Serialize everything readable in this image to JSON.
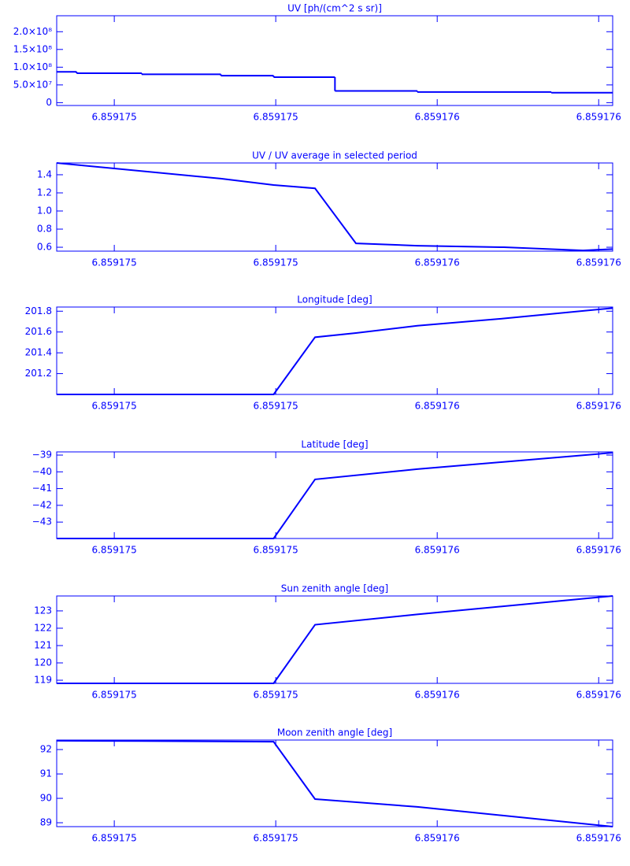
{
  "chart_data": [
    {
      "type": "step",
      "title": "UV [ph/(cm^2 s sr)]",
      "color": "#0000ff",
      "x": [
        6.859174793,
        6.85917483,
        6.859174951,
        6.859175098,
        6.859175196,
        6.85917531,
        6.859175463,
        6.859175712
      ],
      "values": [
        87000000,
        83000000,
        80000000,
        76000000,
        72000000,
        33000000,
        30000000,
        28000000
      ],
      "xlim": [
        6.859174793,
        6.859175826
      ],
      "xticks": [
        {
          "value": 6.8591749,
          "label": "6.859175"
        },
        {
          "value": 6.8591752,
          "label": "6.859175"
        },
        {
          "value": 6.8591755,
          "label": "6.859176"
        },
        {
          "value": 6.8591758,
          "label": "6.859176"
        }
      ],
      "ylim": [
        -8000000,
        245000000
      ],
      "yticks": [
        0,
        {
          "value": 50000000,
          "label": "5.0×10⁷"
        },
        {
          "value": 100000000,
          "label": "1.0×10⁸"
        },
        {
          "value": 150000000,
          "label": "1.5×10⁸"
        },
        {
          "value": 200000000,
          "label": "2.0×10⁸"
        }
      ]
    },
    {
      "type": "line",
      "title": "UV / UV average in selected period",
      "color": "#0000ff",
      "x": [
        6.859174793,
        6.859175098,
        6.859175196,
        6.859175273,
        6.859175349,
        6.859175463,
        6.859175624,
        6.859175771,
        6.859175826
      ],
      "values": [
        1.53,
        1.357,
        1.287,
        1.25,
        0.643,
        0.617,
        0.6,
        0.565,
        0.58
      ],
      "xlim": [
        6.859174793,
        6.859175826
      ],
      "xticks": [
        {
          "value": 6.8591749,
          "label": "6.859175"
        },
        {
          "value": 6.8591752,
          "label": "6.859175"
        },
        {
          "value": 6.8591755,
          "label": "6.859176"
        },
        {
          "value": 6.8591758,
          "label": "6.859176"
        }
      ],
      "ylim": [
        0.557,
        1.53
      ],
      "yticks": [
        {
          "value": 0.6,
          "label": "0.6"
        },
        {
          "value": 0.8,
          "label": "0.8"
        },
        {
          "value": 1,
          "label": "1.0"
        },
        {
          "value": 1.2,
          "label": "1.2"
        },
        {
          "value": 1.4,
          "label": "1.4"
        }
      ]
    },
    {
      "type": "line",
      "title": "Longitude [deg]",
      "color": "#0000ff",
      "x": [
        6.859174793,
        6.859175196,
        6.859175273,
        6.859175349,
        6.859175463,
        6.859175624,
        6.859175826
      ],
      "values": [
        201.0,
        201.0,
        201.55,
        201.59,
        201.66,
        201.73,
        201.83
      ],
      "xlim": [
        6.859174793,
        6.859175826
      ],
      "xticks": [
        {
          "value": 6.8591749,
          "label": "6.859175"
        },
        {
          "value": 6.8591752,
          "label": "6.859175"
        },
        {
          "value": 6.8591755,
          "label": "6.859176"
        },
        {
          "value": 6.8591758,
          "label": "6.859176"
        }
      ],
      "ylim": [
        201.0,
        201.84
      ],
      "yticks": [
        201.2,
        201.4,
        201.6,
        201.8
      ]
    },
    {
      "type": "line",
      "title": "Latitude [deg]",
      "color": "#0000ff",
      "x": [
        6.859174793,
        6.859175196,
        6.859175273,
        6.859175463,
        6.859175826
      ],
      "values": [
        -43.98,
        -43.98,
        -40.45,
        -39.84,
        -38.86
      ],
      "xlim": [
        6.859174793,
        6.859175826
      ],
      "xticks": [
        {
          "value": 6.8591749,
          "label": "6.859175"
        },
        {
          "value": 6.8591752,
          "label": "6.859175"
        },
        {
          "value": 6.8591755,
          "label": "6.859176"
        },
        {
          "value": 6.8591758,
          "label": "6.859176"
        }
      ],
      "ylim": [
        -43.98,
        -38.81
      ],
      "yticks": [
        {
          "value": -43,
          "label": "−43"
        },
        {
          "value": -42,
          "label": "−42"
        },
        {
          "value": -41,
          "label": "−41"
        },
        {
          "value": -40,
          "label": "−40"
        },
        {
          "value": -39,
          "label": "−39"
        }
      ]
    },
    {
      "type": "line",
      "title": "Sun zenith angle [deg]",
      "color": "#0000ff",
      "x": [
        6.859174793,
        6.859175196,
        6.859175273,
        6.859175463,
        6.859175826
      ],
      "values": [
        118.82,
        118.82,
        122.2,
        122.8,
        123.86
      ],
      "xlim": [
        6.859174793,
        6.859175826
      ],
      "xticks": [
        {
          "value": 6.8591749,
          "label": "6.859175"
        },
        {
          "value": 6.8591752,
          "label": "6.859175"
        },
        {
          "value": 6.8591755,
          "label": "6.859176"
        },
        {
          "value": 6.8591758,
          "label": "6.859176"
        }
      ],
      "ylim": [
        118.82,
        123.86
      ],
      "yticks": [
        119,
        120,
        121,
        122,
        123
      ]
    },
    {
      "type": "line",
      "title": "Moon zenith angle [deg]",
      "color": "#0000ff",
      "x": [
        6.859174793,
        6.859174951,
        6.859175196,
        6.859175273,
        6.859175463,
        6.859175826
      ],
      "values": [
        92.36,
        92.35,
        92.32,
        89.97,
        89.65,
        88.84
      ],
      "xlim": [
        6.859174793,
        6.859175826
      ],
      "xticks": [
        {
          "value": 6.8591749,
          "label": "6.859175"
        },
        {
          "value": 6.8591752,
          "label": "6.859175"
        },
        {
          "value": 6.8591755,
          "label": "6.859176"
        },
        {
          "value": 6.8591758,
          "label": "6.859176"
        }
      ],
      "ylim": [
        88.84,
        92.39
      ],
      "yticks": [
        89,
        90,
        91,
        92
      ]
    }
  ]
}
